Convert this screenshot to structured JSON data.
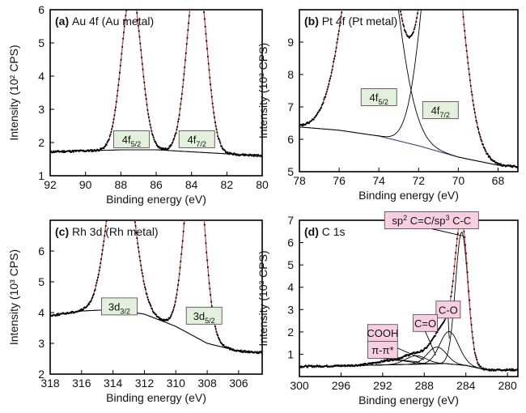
{
  "chart_data": [
    {
      "id": "a",
      "type": "line",
      "label_letter": "(a)",
      "title": "Au 4f (Au metal)",
      "xlabel": "Binding energy (eV)",
      "ylabel": "Intensity (10² CPS)",
      "xlim": [
        92,
        80
      ],
      "ylim": [
        1,
        6
      ],
      "xticks": [
        "92",
        "90",
        "88",
        "86",
        "84",
        "82",
        "80"
      ],
      "yticks": [
        "1",
        "2",
        "3",
        "4",
        "5",
        "6"
      ],
      "baseline": [
        [
          92,
          1.72
        ],
        [
          90,
          1.75
        ],
        [
          88,
          1.78
        ],
        [
          86,
          1.78
        ],
        [
          84,
          1.72
        ],
        [
          82,
          1.66
        ],
        [
          80,
          1.6
        ]
      ],
      "peaks": [
        {
          "label": "4f5/2",
          "center": 87.4,
          "height": 4.82,
          "width": 0.55
        },
        {
          "label": "4f7/2",
          "center": 83.7,
          "height": 5.55,
          "width": 0.55
        }
      ],
      "annotations": [
        {
          "label": "4f",
          "sub": "5/2",
          "x": 87.4,
          "y": 2.1
        },
        {
          "label": "4f",
          "sub": "7/2",
          "x": 83.7,
          "y": 2.1
        }
      ]
    },
    {
      "id": "b",
      "type": "line",
      "label_letter": "(b)",
      "title": "Pt 4f (Pt metal)",
      "xlabel": "Binding energy (eV)",
      "ylabel": "Intensity (10³ CPS)",
      "xlim": [
        78,
        67
      ],
      "ylim": [
        5,
        10
      ],
      "xticks": [
        "78",
        "76",
        "74",
        "72",
        "70",
        "68"
      ],
      "yticks": [
        "5",
        "6",
        "7",
        "8",
        "9"
      ],
      "baseline": [
        [
          78,
          6.38
        ],
        [
          76,
          6.28
        ],
        [
          74,
          6.1
        ],
        [
          72,
          5.8
        ],
        [
          70,
          5.45
        ],
        [
          68,
          5.2
        ],
        [
          67,
          5.15
        ]
      ],
      "peaks": [
        {
          "label": "4f5/2",
          "center": 74.4,
          "height": 8.95,
          "width": 1.1
        },
        {
          "label": "4f7/2",
          "center": 70.8,
          "height": 9.35,
          "width": 0.85
        }
      ],
      "annotations": [
        {
          "label": "4f",
          "sub": "5/2",
          "x": 74.0,
          "y": 7.3
        },
        {
          "label": "4f",
          "sub": "7/2",
          "x": 70.9,
          "y": 6.9
        }
      ]
    },
    {
      "id": "c",
      "type": "line",
      "label_letter": "(c)",
      "title": "Rh 3d (Rh metal)",
      "xlabel": "Binding energy (eV)",
      "ylabel": "Intensity (10³ CPS)",
      "xlim": [
        318,
        304.5
      ],
      "ylim": [
        2,
        7
      ],
      "xticks": [
        "318",
        "316",
        "314",
        "312",
        "310",
        "308",
        "306"
      ],
      "yticks": [
        "2",
        "3",
        "4",
        "5",
        "6"
      ],
      "baseline": [
        [
          318,
          3.9
        ],
        [
          316,
          4.05
        ],
        [
          314,
          4.1
        ],
        [
          312,
          3.95
        ],
        [
          310,
          3.55
        ],
        [
          308,
          3.0
        ],
        [
          306,
          2.75
        ],
        [
          304.5,
          2.7
        ]
      ],
      "peaks": [
        {
          "label": "3d3/2",
          "center": 313.5,
          "height": 5.6,
          "width": 0.8
        },
        {
          "label": "3d5/2",
          "center": 308.8,
          "height": 6.55,
          "width": 0.6
        }
      ],
      "annotations": [
        {
          "label": "3d",
          "sub": "3/2",
          "x": 313.6,
          "y": 4.2
        },
        {
          "label": "3d",
          "sub": "5/2",
          "x": 308.2,
          "y": 3.9
        }
      ]
    },
    {
      "id": "d",
      "type": "line",
      "label_letter": "(d)",
      "title": "C 1s",
      "xlabel": "Binding energy (eV)",
      "ylabel": "Intensity (10³ CPS)",
      "xlim": [
        300,
        279
      ],
      "ylim": [
        0,
        7
      ],
      "xticks": [
        "300",
        "296",
        "292",
        "288",
        "284",
        "280"
      ],
      "yticks": [
        "1",
        "2",
        "3",
        "4",
        "5",
        "6",
        "7"
      ],
      "baseline": [
        [
          300,
          0.45
        ],
        [
          296,
          0.48
        ],
        [
          292,
          0.52
        ],
        [
          288,
          0.56
        ],
        [
          286,
          0.58
        ],
        [
          284,
          0.5
        ],
        [
          282,
          0.3
        ],
        [
          279,
          0.3
        ]
      ],
      "peaks": [
        {
          "label": "sp² C=C/sp³ C-C",
          "center": 284.4,
          "height": 5.95,
          "width": 0.6
        },
        {
          "label": "C-O",
          "center": 285.6,
          "height": 1.45,
          "width": 0.9
        },
        {
          "label": "C=O",
          "center": 286.8,
          "height": 0.75,
          "width": 0.9
        },
        {
          "label": "COOH",
          "center": 288.8,
          "height": 0.38,
          "width": 1.0
        },
        {
          "label": "π-π*",
          "center": 291.0,
          "height": 0.2,
          "width": 1.5
        }
      ],
      "annotations": [
        {
          "label": "sp",
          "sup": "2",
          "rest": " C=C/sp",
          "sup2": "3",
          "tail": " C-C",
          "x": 287.3,
          "y": 7.0,
          "tx": 284.3,
          "ty": 6.3
        },
        {
          "label": "C-O",
          "x": 285.7,
          "y": 3.0,
          "tx": 285.6,
          "ty": 1.7
        },
        {
          "label": "C=O",
          "x": 287.9,
          "y": 2.4,
          "tx": 286.9,
          "ty": 0.95
        },
        {
          "label": "COOH",
          "x": 292.0,
          "y": 1.95,
          "tx": 288.0,
          "ty": 0.75
        },
        {
          "label": "π-π*",
          "x": 292.0,
          "y": 1.2,
          "tx": 288.4,
          "ty": 0.65
        }
      ]
    }
  ]
}
